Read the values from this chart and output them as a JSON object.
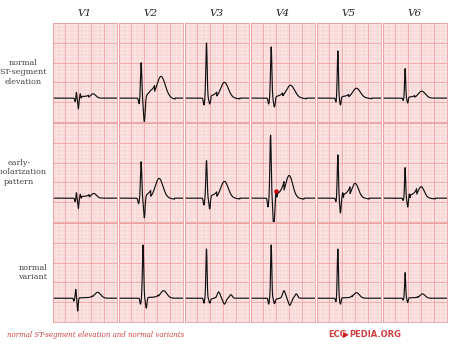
{
  "col_labels": [
    "V1",
    "V2",
    "V3",
    "V4",
    "V5",
    "V6"
  ],
  "row_labels": [
    "normal\nST-segment\nelevation",
    "early-\nrepolarization\npattern",
    "normal\nvariant"
  ],
  "footer_left": "normal ST-segment elevation and normal variants",
  "footer_right_ecg": "ECG",
  "footer_right_pedia": "PEDIA.ORG",
  "bg_color": "#fce8e8",
  "grid_minor_color": "#f5b8b8",
  "grid_major_color": "#f0a0a0",
  "line_color": "#111111",
  "label_color": "#444444",
  "footer_color": "#d04040",
  "red_dot_color": "#cc0000",
  "outer_bg": "#ffffff",
  "border_color": "#e8a0a0"
}
